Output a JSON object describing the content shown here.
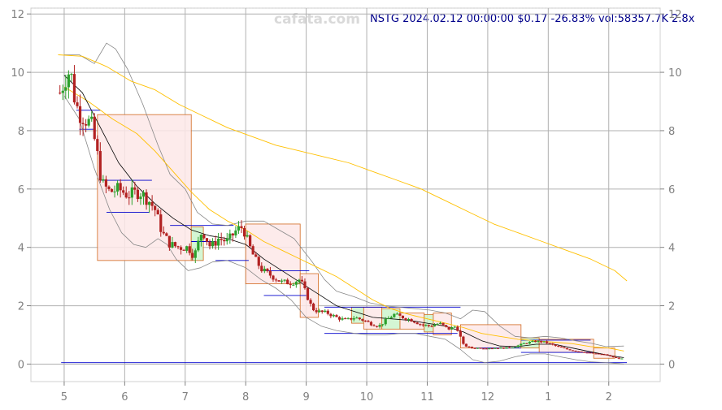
{
  "header": {
    "watermark": "cafata.com",
    "quote": "NSTG 2024.02.12 00:00:00 $0.17 -26.83% vol:58357.7K 2.8x"
  },
  "colors": {
    "up": "#2ca02c",
    "down": "#b22222",
    "box_up_fill": "#ccf5cc",
    "box_down_fill": "#fde8e8",
    "box_stroke": "#d2691e",
    "ma_short": "#000000",
    "ma_mid": "#ffc000",
    "ma_long": "#ffc000",
    "bollinger": "#888888",
    "support": "#0000cd",
    "grid": "#b0b0b0"
  },
  "chart_data": {
    "type": "candlestick",
    "ticker": "NSTG",
    "x_ticks": [
      "5",
      "6",
      "7",
      "8",
      "9",
      "10",
      "11",
      "12",
      "1",
      "2"
    ],
    "y_ticks": [
      0,
      2,
      4,
      6,
      8,
      10,
      12
    ],
    "ylim": [
      -0.6,
      12.2
    ],
    "xlim": [
      4.45,
      14.85
    ],
    "grid": true,
    "close_path": [
      [
        4.93,
        9.3
      ],
      [
        5.02,
        9.8
      ],
      [
        5.1,
        10.1
      ],
      [
        5.18,
        9.0
      ],
      [
        5.25,
        8.6
      ],
      [
        5.35,
        8.4
      ],
      [
        5.45,
        8.2
      ],
      [
        5.53,
        7.4
      ],
      [
        5.62,
        6.2
      ],
      [
        5.75,
        5.9
      ],
      [
        5.9,
        6.0
      ],
      [
        6.05,
        5.8
      ],
      [
        6.25,
        5.9
      ],
      [
        6.4,
        5.6
      ],
      [
        6.5,
        5.3
      ],
      [
        6.62,
        4.5
      ],
      [
        6.75,
        4.1
      ],
      [
        6.9,
        4.0
      ],
      [
        7.05,
        4.0
      ],
      [
        7.15,
        3.7
      ],
      [
        7.28,
        4.6
      ],
      [
        7.42,
        4.0
      ],
      [
        7.55,
        4.3
      ],
      [
        7.7,
        4.2
      ],
      [
        7.85,
        4.6
      ],
      [
        7.95,
        4.7
      ],
      [
        8.05,
        4.1
      ],
      [
        8.15,
        3.6
      ],
      [
        8.28,
        3.2
      ],
      [
        8.45,
        3.0
      ],
      [
        8.6,
        2.8
      ],
      [
        8.75,
        2.8
      ],
      [
        8.9,
        2.9
      ],
      [
        9.0,
        2.4
      ],
      [
        9.1,
        1.9
      ],
      [
        9.2,
        1.8
      ],
      [
        9.35,
        1.75
      ],
      [
        9.5,
        1.6
      ],
      [
        9.65,
        1.5
      ],
      [
        9.8,
        1.6
      ],
      [
        9.95,
        1.5
      ],
      [
        10.05,
        1.4
      ],
      [
        10.2,
        1.3
      ],
      [
        10.32,
        1.5
      ],
      [
        10.45,
        1.7
      ],
      [
        10.6,
        1.6
      ],
      [
        10.75,
        1.5
      ],
      [
        10.9,
        1.35
      ],
      [
        11.05,
        1.3
      ],
      [
        11.2,
        1.4
      ],
      [
        11.35,
        1.2
      ],
      [
        11.48,
        1.3
      ],
      [
        11.6,
        0.65
      ],
      [
        11.72,
        0.55
      ],
      [
        11.9,
        0.55
      ],
      [
        12.1,
        0.55
      ],
      [
        12.3,
        0.55
      ],
      [
        12.45,
        0.6
      ],
      [
        12.62,
        0.72
      ],
      [
        12.78,
        0.78
      ],
      [
        12.95,
        0.75
      ],
      [
        13.12,
        0.62
      ],
      [
        13.28,
        0.52
      ],
      [
        13.45,
        0.45
      ],
      [
        13.62,
        0.4
      ],
      [
        13.78,
        0.35
      ],
      [
        13.95,
        0.32
      ],
      [
        14.05,
        0.25
      ],
      [
        14.15,
        0.2
      ],
      [
        14.25,
        0.17
      ]
    ],
    "ma_short": [
      [
        5.0,
        9.9
      ],
      [
        5.3,
        9.3
      ],
      [
        5.6,
        8.1
      ],
      [
        5.9,
        6.9
      ],
      [
        6.2,
        6.1
      ],
      [
        6.5,
        5.5
      ],
      [
        6.8,
        5.0
      ],
      [
        7.1,
        4.6
      ],
      [
        7.4,
        4.4
      ],
      [
        7.7,
        4.3
      ],
      [
        8.0,
        4.1
      ],
      [
        8.3,
        3.6
      ],
      [
        8.6,
        3.2
      ],
      [
        8.9,
        2.8
      ],
      [
        9.2,
        2.4
      ],
      [
        9.5,
        2.0
      ],
      [
        9.8,
        1.8
      ],
      [
        10.1,
        1.6
      ],
      [
        10.4,
        1.55
      ],
      [
        10.7,
        1.5
      ],
      [
        11.0,
        1.4
      ],
      [
        11.3,
        1.3
      ],
      [
        11.6,
        1.1
      ],
      [
        11.9,
        0.8
      ],
      [
        12.2,
        0.62
      ],
      [
        12.5,
        0.6
      ],
      [
        12.8,
        0.68
      ],
      [
        13.1,
        0.68
      ],
      [
        13.4,
        0.55
      ],
      [
        13.7,
        0.42
      ],
      [
        14.0,
        0.3
      ],
      [
        14.25,
        0.22
      ]
    ],
    "ma_mid": [
      [
        5.0,
        9.5
      ],
      [
        5.4,
        9.0
      ],
      [
        5.8,
        8.4
      ],
      [
        6.2,
        7.9
      ],
      [
        6.5,
        7.3
      ],
      [
        6.8,
        6.6
      ],
      [
        7.1,
        5.9
      ],
      [
        7.4,
        5.3
      ],
      [
        7.7,
        4.9
      ],
      [
        8.0,
        4.6
      ],
      [
        8.3,
        4.2
      ],
      [
        8.6,
        3.9
      ],
      [
        8.9,
        3.6
      ],
      [
        9.2,
        3.3
      ],
      [
        9.5,
        3.0
      ],
      [
        9.8,
        2.6
      ],
      [
        10.1,
        2.2
      ],
      [
        10.4,
        1.9
      ],
      [
        10.7,
        1.7
      ],
      [
        11.0,
        1.55
      ],
      [
        11.3,
        1.4
      ],
      [
        11.6,
        1.25
      ],
      [
        11.9,
        1.05
      ],
      [
        12.2,
        0.95
      ],
      [
        12.5,
        0.85
      ],
      [
        12.8,
        0.8
      ],
      [
        13.1,
        0.75
      ],
      [
        13.4,
        0.7
      ],
      [
        13.7,
        0.6
      ],
      [
        14.0,
        0.55
      ],
      [
        14.25,
        0.45
      ]
    ],
    "ma_long": [
      [
        4.9,
        10.6
      ],
      [
        5.3,
        10.55
      ],
      [
        5.7,
        10.2
      ],
      [
        6.1,
        9.7
      ],
      [
        6.5,
        9.4
      ],
      [
        6.9,
        8.9
      ],
      [
        7.3,
        8.5
      ],
      [
        7.7,
        8.1
      ],
      [
        8.1,
        7.8
      ],
      [
        8.5,
        7.5
      ],
      [
        8.9,
        7.3
      ],
      [
        9.3,
        7.1
      ],
      [
        9.7,
        6.9
      ],
      [
        10.1,
        6.6
      ],
      [
        10.5,
        6.3
      ],
      [
        10.9,
        6.0
      ],
      [
        11.3,
        5.6
      ],
      [
        11.7,
        5.2
      ],
      [
        12.1,
        4.8
      ],
      [
        12.5,
        4.5
      ],
      [
        12.9,
        4.2
      ],
      [
        13.3,
        3.9
      ],
      [
        13.7,
        3.6
      ],
      [
        14.1,
        3.2
      ],
      [
        14.3,
        2.85
      ]
    ],
    "bollinger_upper": [
      [
        5.0,
        10.6
      ],
      [
        5.25,
        10.6
      ],
      [
        5.5,
        10.3
      ],
      [
        5.7,
        11.0
      ],
      [
        5.85,
        10.8
      ],
      [
        6.05,
        10.1
      ],
      [
        6.3,
        8.9
      ],
      [
        6.55,
        7.5
      ],
      [
        6.75,
        6.5
      ],
      [
        7.0,
        6.0
      ],
      [
        7.2,
        5.2
      ],
      [
        7.45,
        4.8
      ],
      [
        7.7,
        4.75
      ],
      [
        8.0,
        4.9
      ],
      [
        8.3,
        4.9
      ],
      [
        8.55,
        4.6
      ],
      [
        8.8,
        4.3
      ],
      [
        9.1,
        3.5
      ],
      [
        9.3,
        2.9
      ],
      [
        9.5,
        2.5
      ],
      [
        9.8,
        2.3
      ],
      [
        10.05,
        2.1
      ],
      [
        10.3,
        2.0
      ],
      [
        10.55,
        1.95
      ],
      [
        10.8,
        1.9
      ],
      [
        11.05,
        1.85
      ],
      [
        11.3,
        1.75
      ],
      [
        11.55,
        1.55
      ],
      [
        11.75,
        1.85
      ],
      [
        11.95,
        1.8
      ],
      [
        12.2,
        1.3
      ],
      [
        12.45,
        0.95
      ],
      [
        12.7,
        0.9
      ],
      [
        12.95,
        0.95
      ],
      [
        13.2,
        0.9
      ],
      [
        13.45,
        0.8
      ],
      [
        13.7,
        0.72
      ],
      [
        13.95,
        0.6
      ],
      [
        14.25,
        0.62
      ]
    ],
    "bollinger_lower": [
      [
        5.0,
        9.2
      ],
      [
        5.25,
        8.4
      ],
      [
        5.5,
        6.7
      ],
      [
        5.75,
        5.3
      ],
      [
        5.95,
        4.5
      ],
      [
        6.15,
        4.1
      ],
      [
        6.35,
        4.0
      ],
      [
        6.55,
        4.3
      ],
      [
        6.7,
        4.1
      ],
      [
        6.85,
        3.6
      ],
      [
        7.05,
        3.2
      ],
      [
        7.25,
        3.3
      ],
      [
        7.45,
        3.5
      ],
      [
        7.7,
        3.55
      ],
      [
        8.0,
        3.3
      ],
      [
        8.25,
        2.9
      ],
      [
        8.5,
        2.6
      ],
      [
        8.75,
        2.2
      ],
      [
        9.0,
        1.6
      ],
      [
        9.25,
        1.3
      ],
      [
        9.5,
        1.15
      ],
      [
        9.8,
        1.05
      ],
      [
        10.05,
        1.0
      ],
      [
        10.3,
        1.0
      ],
      [
        10.55,
        1.05
      ],
      [
        10.8,
        1.05
      ],
      [
        11.05,
        0.95
      ],
      [
        11.3,
        0.85
      ],
      [
        11.55,
        0.5
      ],
      [
        11.75,
        0.15
      ],
      [
        11.95,
        0.05
      ],
      [
        12.2,
        0.1
      ],
      [
        12.45,
        0.25
      ],
      [
        12.7,
        0.35
      ],
      [
        12.95,
        0.35
      ],
      [
        13.2,
        0.25
      ],
      [
        13.45,
        0.15
      ],
      [
        13.7,
        0.08
      ],
      [
        13.95,
        0.05
      ],
      [
        14.25,
        0.0
      ]
    ],
    "range_boxes": [
      {
        "x0": 5.55,
        "x1": 7.1,
        "low": 3.55,
        "high": 8.55,
        "dir": "down"
      },
      {
        "x0": 7.1,
        "x1": 7.3,
        "low": 3.55,
        "high": 4.7,
        "dir": "up"
      },
      {
        "x0": 8.0,
        "x1": 8.9,
        "low": 2.75,
        "high": 4.8,
        "dir": "down"
      },
      {
        "x0": 8.9,
        "x1": 9.2,
        "low": 1.6,
        "high": 3.1,
        "dir": "down"
      },
      {
        "x0": 9.75,
        "x1": 9.95,
        "low": 1.4,
        "high": 1.95,
        "dir": "up"
      },
      {
        "x0": 9.95,
        "x1": 10.25,
        "low": 1.2,
        "high": 1.95,
        "dir": "down"
      },
      {
        "x0": 10.25,
        "x1": 10.55,
        "low": 1.2,
        "high": 1.9,
        "dir": "up"
      },
      {
        "x0": 10.55,
        "x1": 10.95,
        "low": 1.2,
        "high": 1.75,
        "dir": "down"
      },
      {
        "x0": 10.95,
        "x1": 11.1,
        "low": 1.1,
        "high": 1.7,
        "dir": "up"
      },
      {
        "x0": 11.1,
        "x1": 11.4,
        "low": 1.0,
        "high": 1.75,
        "dir": "down"
      },
      {
        "x0": 11.55,
        "x1": 12.55,
        "low": 0.55,
        "high": 1.35,
        "dir": "down"
      },
      {
        "x0": 12.55,
        "x1": 12.85,
        "low": 0.55,
        "high": 0.9,
        "dir": "up"
      },
      {
        "x0": 12.85,
        "x1": 13.75,
        "low": 0.4,
        "high": 0.85,
        "dir": "down"
      },
      {
        "x0": 13.75,
        "x1": 14.1,
        "low": 0.2,
        "high": 0.55,
        "dir": "down"
      }
    ],
    "support_lines": [
      {
        "x0": 5.2,
        "x1": 5.6,
        "y": 8.7
      },
      {
        "x0": 5.25,
        "x1": 5.5,
        "y": 8.05
      },
      {
        "x0": 5.6,
        "x1": 6.45,
        "y": 6.3
      },
      {
        "x0": 5.7,
        "x1": 6.4,
        "y": 5.2
      },
      {
        "x0": 6.75,
        "x1": 7.8,
        "y": 4.75
      },
      {
        "x0": 7.1,
        "x1": 7.5,
        "y": 4.2
      },
      {
        "x0": 7.5,
        "x1": 8.05,
        "y": 3.55
      },
      {
        "x0": 8.3,
        "x1": 9.05,
        "y": 3.2
      },
      {
        "x0": 8.3,
        "x1": 9.0,
        "y": 2.35
      },
      {
        "x0": 9.3,
        "x1": 11.55,
        "y": 1.95
      },
      {
        "x0": 9.3,
        "x1": 11.5,
        "y": 1.05
      },
      {
        "x0": 11.8,
        "x1": 12.55,
        "y": 0.55
      },
      {
        "x0": 12.55,
        "x1": 13.7,
        "y": 0.82
      },
      {
        "x0": 12.55,
        "x1": 13.75,
        "y": 0.4
      },
      {
        "x0": 4.95,
        "x1": 14.3,
        "y": 0.05
      }
    ]
  }
}
